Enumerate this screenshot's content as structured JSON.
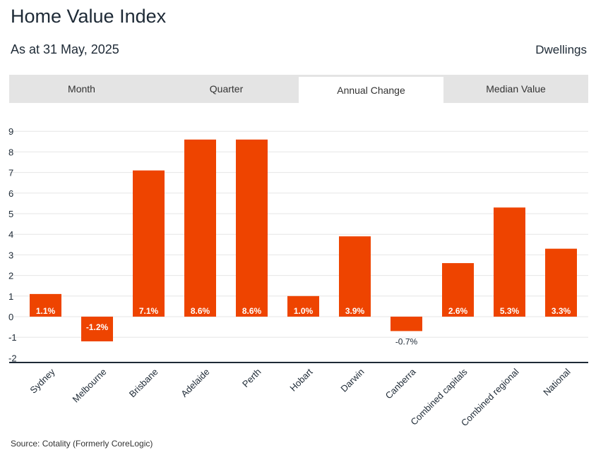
{
  "header": {
    "title": "Home Value Index",
    "subtitle": "As at 31 May, 2025",
    "dwellings": "Dwellings"
  },
  "tabs": [
    {
      "label": "Month",
      "active": false
    },
    {
      "label": "Quarter",
      "active": false
    },
    {
      "label": "Annual Change",
      "active": true
    },
    {
      "label": "Median Value",
      "active": false
    }
  ],
  "chart_data": {
    "type": "bar",
    "title": "",
    "xlabel": "",
    "ylabel": "",
    "ylim": [
      -2,
      9
    ],
    "yticks": [
      9,
      8,
      7,
      6,
      5,
      4,
      3,
      2,
      1,
      0,
      -1,
      -2
    ],
    "grid": true,
    "bar_color": "#ee4400",
    "categories": [
      "Sydney",
      "Melbourne",
      "Brisbane",
      "Adelaide",
      "Perth",
      "Hobart",
      "Darwin",
      "Canberra",
      "Combined capitals",
      "Combined regional",
      "National"
    ],
    "values": [
      1.1,
      -1.2,
      7.1,
      8.6,
      8.6,
      1.0,
      3.9,
      -0.7,
      2.6,
      5.3,
      3.3
    ],
    "value_labels": [
      "1.1%",
      "-1.2%",
      "7.1%",
      "8.6%",
      "8.6%",
      "1.0%",
      "3.9%",
      "-0.7%",
      "2.6%",
      "5.3%",
      "3.3%"
    ]
  },
  "footer": {
    "source": "Source: Cotality (Formerly CoreLogic)"
  }
}
